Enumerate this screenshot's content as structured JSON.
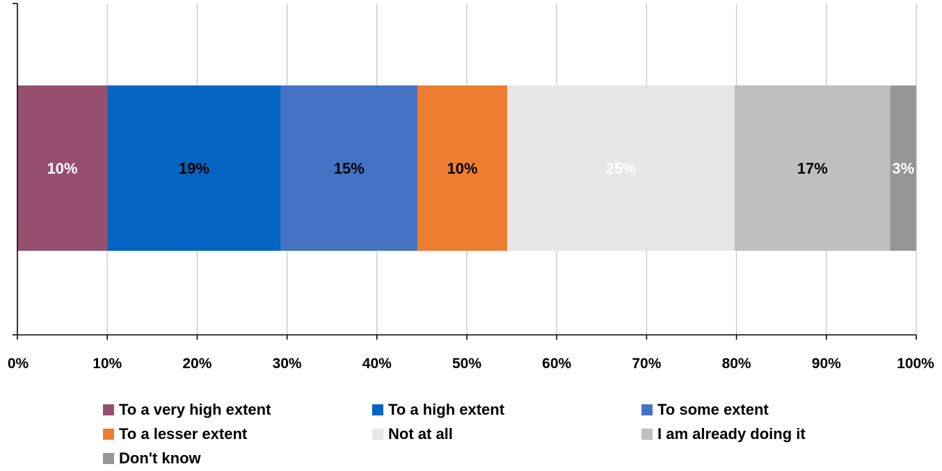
{
  "chart_data": {
    "type": "bar",
    "orientation": "horizontal",
    "stacked": true,
    "title": "",
    "xlabel": "",
    "ylabel": "",
    "xlim": [
      0,
      100
    ],
    "x_ticks": [
      "0%",
      "10%",
      "20%",
      "30%",
      "40%",
      "50%",
      "60%",
      "70%",
      "80%",
      "90%",
      "100%"
    ],
    "grid": "vertical",
    "legend_position": "bottom",
    "categories": [
      ""
    ],
    "series": [
      {
        "name": "To a very high extent",
        "values": [
          10
        ],
        "label": "10%",
        "color": "#964F6F",
        "label_color": "#FFFFFF"
      },
      {
        "name": "To a high extent",
        "values": [
          19.3
        ],
        "label": "19%",
        "color": "#0563C1",
        "label_color": "#000000"
      },
      {
        "name": "To some extent",
        "values": [
          15.2
        ],
        "label": "15%",
        "color": "#4472C4",
        "label_color": "#000000"
      },
      {
        "name": "To a lesser extent",
        "values": [
          10
        ],
        "label": "10%",
        "color": "#ED7D31",
        "label_color": "#000000"
      },
      {
        "name": "Not at all",
        "values": [
          25.3
        ],
        "label": "25%",
        "color": "#E7E6E6",
        "label_color": "#FFFFFF"
      },
      {
        "name": "I am already doing it",
        "values": [
          17.3
        ],
        "label": "17%",
        "color": "#BFBFBF",
        "label_color": "#000000"
      },
      {
        "name": "Don't know",
        "values": [
          2.9
        ],
        "label": "3%",
        "color": "#969696",
        "label_color": "#FFFFFF"
      }
    ]
  }
}
